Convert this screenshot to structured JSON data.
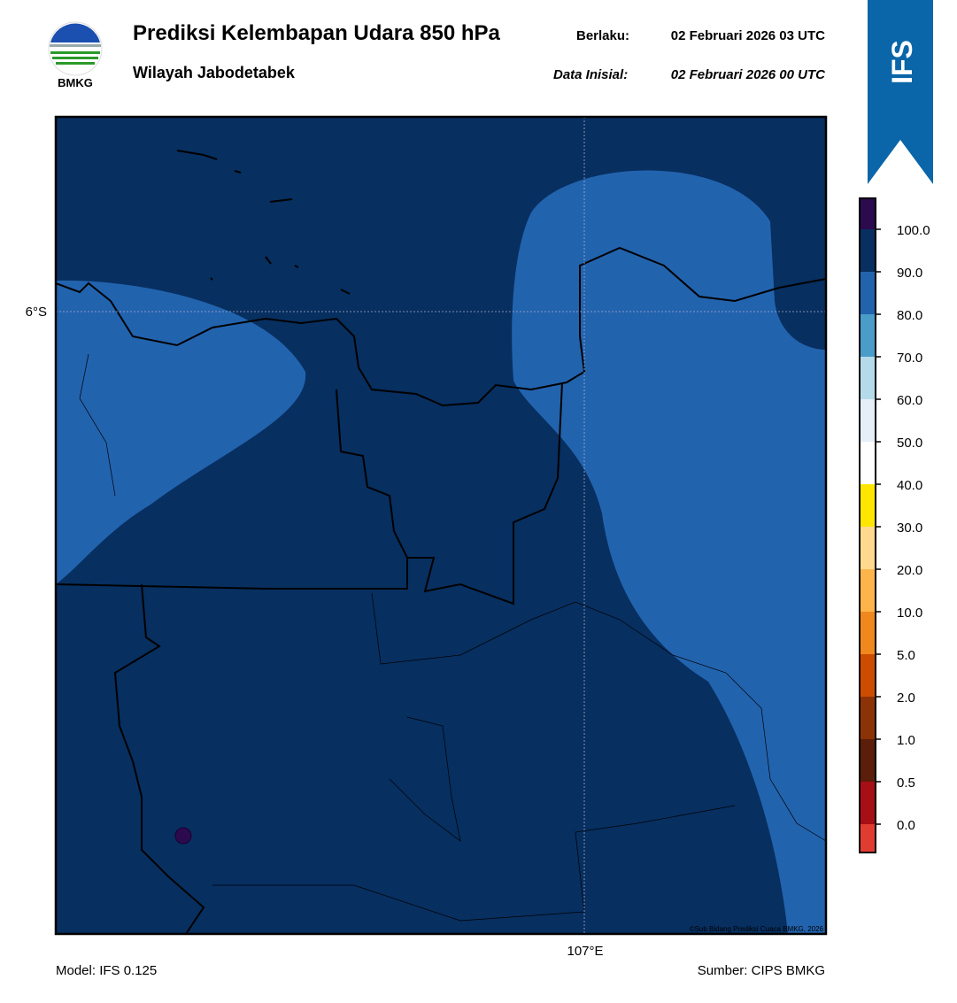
{
  "header": {
    "logo_text": "BMKG",
    "title": "Prediksi Kelembapan Udara 850 hPa",
    "valid_label": "Berlaku:",
    "valid_time": "02 Februari 2026 03 UTC",
    "region": "Wilayah Jabodetabek",
    "init_label": "Data Inisial:",
    "init_time": "02 Februari 2026 00 UTC"
  },
  "badge": "IFS",
  "map": {
    "lat_label": "6°S",
    "lon_label": "107°E",
    "copyright": "©Sub Bidang Prediksi Cuaca BMKG, 2026"
  },
  "colorbar": {
    "labels": [
      "0.0",
      "0.5",
      "1.0",
      "2.0",
      "5.0",
      "10.0",
      "20.0",
      "30.0",
      "40.0",
      "50.0",
      "60.0",
      "70.0",
      "80.0",
      "90.0",
      "100.0"
    ],
    "colors": [
      "#e03c31",
      "#a50f15",
      "#5a1e0a",
      "#8b3206",
      "#cc4c02",
      "#f0881e",
      "#fdb44b",
      "#fed98e",
      "#ffe600",
      "#ffffff",
      "#e6eff8",
      "#b5dbea",
      "#4a9cc9",
      "#2263ae",
      "#072f60",
      "#2c0a4e"
    ]
  },
  "footer": {
    "model": "Model: IFS 0.125",
    "source": "Sumber: CIPS BMKG"
  }
}
